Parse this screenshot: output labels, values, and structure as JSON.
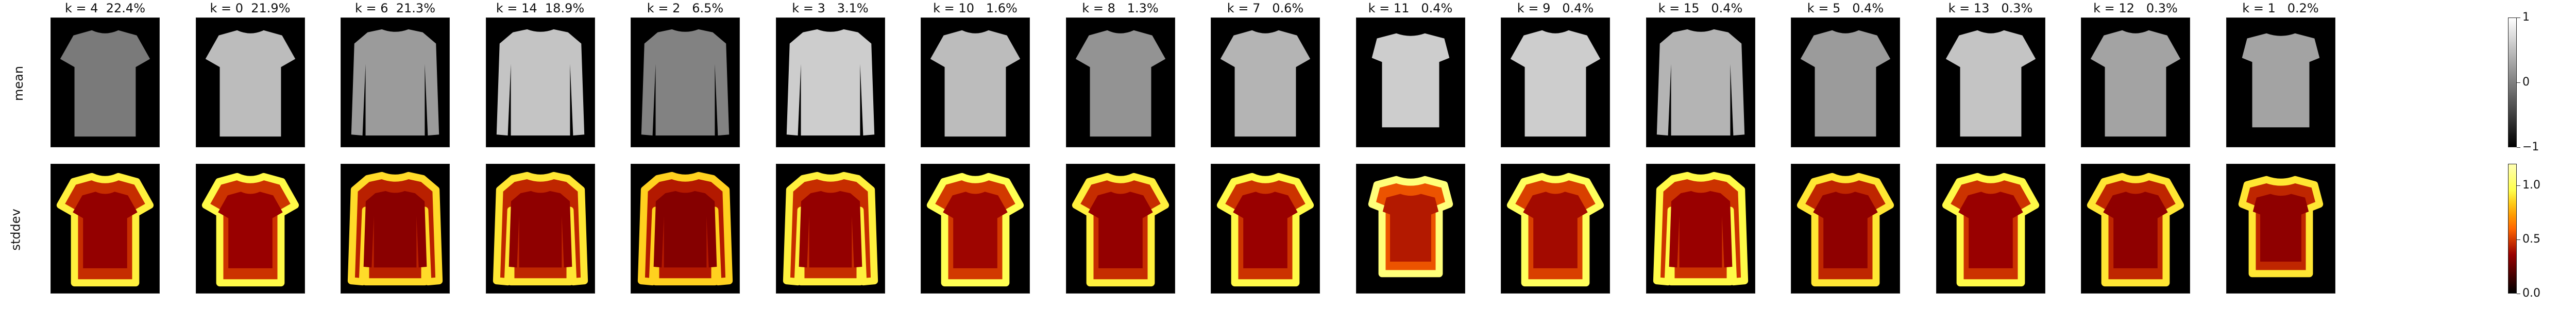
{
  "chart_data": {
    "type": "heatmap",
    "rows": [
      {
        "label": "mean",
        "colormap": "gray",
        "colorbar": {
          "min": -1,
          "max": 1,
          "ticks": [
            "1",
            "0",
            "−1"
          ]
        }
      },
      {
        "label": "stddev",
        "colormap": "afmhot",
        "colorbar": {
          "min": 0,
          "max": 1.2,
          "ticks": [
            "1.0",
            "0.5",
            "0.0"
          ]
        }
      }
    ],
    "clusters": [
      {
        "title": "k = 4  22.4%",
        "k": 4,
        "percent": 22.4,
        "shape": "tshirt",
        "mean_level": 0.35,
        "std_level": 0.55
      },
      {
        "title": "k = 0  21.9%",
        "k": 0,
        "percent": 21.9,
        "shape": "tshirt",
        "mean_level": 0.75,
        "std_level": 0.6
      },
      {
        "title": "k = 6  21.3%",
        "k": 6,
        "percent": 21.3,
        "shape": "sweater",
        "mean_level": 0.55,
        "std_level": 0.45
      },
      {
        "title": "k = 14  18.9%",
        "k": 14,
        "percent": 18.9,
        "shape": "sweater",
        "mean_level": 0.8,
        "std_level": 0.5
      },
      {
        "title": "k = 2   6.5%",
        "k": 2,
        "percent": 6.5,
        "shape": "sweater",
        "mean_level": 0.4,
        "std_level": 0.4
      },
      {
        "title": "k = 3   3.1%",
        "k": 3,
        "percent": 3.1,
        "shape": "sweater",
        "mean_level": 0.85,
        "std_level": 0.55
      },
      {
        "title": "k = 10   1.6%",
        "k": 10,
        "percent": 1.6,
        "shape": "tshirt",
        "mean_level": 0.75,
        "std_level": 0.65
      },
      {
        "title": "k = 8   1.3%",
        "k": 8,
        "percent": 1.3,
        "shape": "tshirt",
        "mean_level": 0.5,
        "std_level": 0.55
      },
      {
        "title": "k = 7   0.6%",
        "k": 7,
        "percent": 0.6,
        "shape": "tshirt",
        "mean_level": 0.7,
        "std_level": 0.6
      },
      {
        "title": "k = 11   0.4%",
        "k": 11,
        "percent": 0.4,
        "shape": "boxy",
        "mean_level": 0.85,
        "std_level": 0.85
      },
      {
        "title": "k = 9   0.4%",
        "k": 9,
        "percent": 0.4,
        "shape": "tshirt",
        "mean_level": 0.85,
        "std_level": 0.7
      },
      {
        "title": "k = 15   0.4%",
        "k": 15,
        "percent": 0.4,
        "shape": "sweater",
        "mean_level": 0.7,
        "std_level": 0.6
      },
      {
        "title": "k = 5   0.4%",
        "k": 5,
        "percent": 0.4,
        "shape": "tshirt",
        "mean_level": 0.55,
        "std_level": 0.5
      },
      {
        "title": "k = 13   0.3%",
        "k": 13,
        "percent": 0.3,
        "shape": "tshirt",
        "mean_level": 0.8,
        "std_level": 0.6
      },
      {
        "title": "k = 12   0.3%",
        "k": 12,
        "percent": 0.3,
        "shape": "tshirt",
        "mean_level": 0.6,
        "std_level": 0.5
      },
      {
        "title": "k = 1   0.2%",
        "k": 1,
        "percent": 0.2,
        "shape": "boxy",
        "mean_level": 0.6,
        "std_level": 0.5
      }
    ]
  }
}
